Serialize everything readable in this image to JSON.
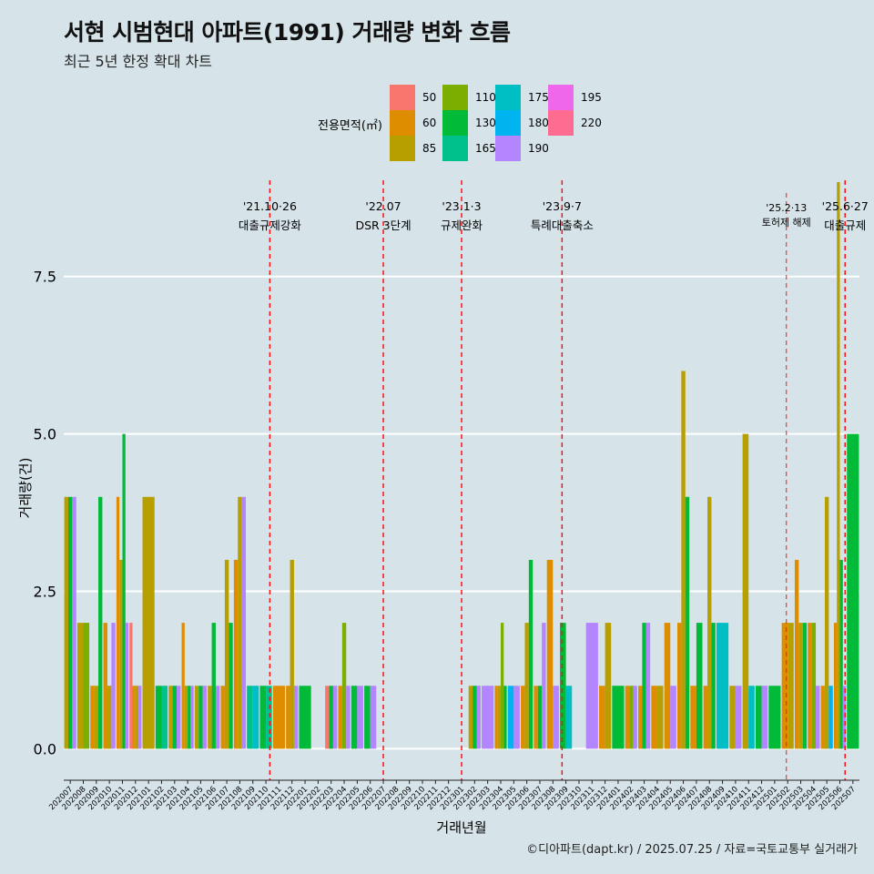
{
  "chart_data": {
    "type": "bar",
    "title": "서현 시범현대 아파트(1991) 거래량 변화 흐름",
    "subtitle": "최근 5년 한정 확대 차트",
    "xlabel": "거래년월",
    "ylabel": "거래량(건)",
    "ylim": [
      -0.5,
      9.0
    ],
    "yticks": [
      "0.0",
      "2.5",
      "5.0",
      "7.5"
    ],
    "ytick_values": [
      0,
      2.5,
      5.0,
      7.5
    ],
    "legend_title": "전용면적(㎡)",
    "legend": [
      {
        "name": "50",
        "color": "#F8766D"
      },
      {
        "name": "60",
        "color": "#DE8C00"
      },
      {
        "name": "85",
        "color": "#B79F00"
      },
      {
        "name": "110",
        "color": "#7CAE00"
      },
      {
        "name": "130",
        "color": "#00BA38"
      },
      {
        "name": "165",
        "color": "#00C08B"
      },
      {
        "name": "175",
        "color": "#00BFC4"
      },
      {
        "name": "180",
        "color": "#00B4F0"
      },
      {
        "name": "190",
        "color": "#B385FF"
      },
      {
        "name": "195",
        "color": "#EF67EB"
      },
      {
        "name": "220",
        "color": "#FF6C91"
      }
    ],
    "categories": [
      "202007",
      "202008",
      "202009",
      "202010",
      "202011",
      "202012",
      "202101",
      "202102",
      "202103",
      "202104",
      "202105",
      "202106",
      "202107",
      "202108",
      "202109",
      "202110",
      "202111",
      "202112",
      "202201",
      "202202",
      "202203",
      "202204",
      "202205",
      "202206",
      "202207",
      "202208",
      "202209",
      "202210",
      "202211",
      "202212",
      "202301",
      "202302",
      "202303",
      "202304",
      "202305",
      "202306",
      "202307",
      "202308",
      "202309",
      "202310",
      "202311",
      "202312",
      "202401",
      "202402",
      "202403",
      "202404",
      "202405",
      "202406",
      "202407",
      "202408",
      "202409",
      "202410",
      "202411",
      "202412",
      "202501",
      "202502",
      "202503",
      "202504",
      "202505",
      "202506",
      "202507"
    ],
    "series": [
      {
        "name": "50",
        "values": [
          0,
          0,
          0,
          0,
          0,
          2,
          0,
          0,
          0,
          0,
          0,
          0,
          0,
          0,
          0,
          0,
          0,
          0,
          0,
          0,
          1,
          0,
          0,
          0,
          0,
          0,
          0,
          0,
          0,
          0,
          0,
          0,
          0,
          0,
          0,
          0,
          0,
          0,
          0,
          0,
          0,
          0,
          0,
          0,
          0,
          0,
          0,
          0,
          0,
          0,
          0,
          0,
          0,
          0,
          0,
          0,
          0,
          0,
          0,
          0,
          0
        ]
      },
      {
        "name": "60",
        "values": [
          0,
          0,
          1,
          2,
          4,
          1,
          0,
          0,
          0,
          2,
          0,
          0,
          1,
          3,
          0,
          0,
          1,
          1,
          0,
          0,
          0,
          1,
          0,
          0,
          0,
          0,
          0,
          0,
          0,
          0,
          0,
          0,
          0,
          1,
          0,
          1,
          1,
          3,
          0,
          0,
          0,
          1,
          0,
          1,
          1,
          1,
          2,
          2,
          1,
          1,
          0,
          0,
          0,
          0,
          0,
          2,
          3,
          2,
          1,
          2,
          0
        ]
      },
      {
        "name": "85",
        "values": [
          4,
          2,
          1,
          1,
          3,
          1,
          4,
          0,
          1,
          1,
          1,
          1,
          3,
          4,
          0,
          0,
          0,
          3,
          0,
          0,
          0,
          0,
          0,
          0,
          0,
          0,
          0,
          0,
          0,
          0,
          0,
          1,
          0,
          1,
          0,
          2,
          0,
          0,
          0,
          0,
          0,
          2,
          0,
          0,
          0,
          1,
          0,
          6,
          0,
          4,
          0,
          1,
          5,
          0,
          0,
          2,
          2,
          0,
          4,
          9,
          0
        ]
      },
      {
        "name": "110",
        "values": [
          0,
          2,
          0,
          0,
          0,
          0,
          0,
          0,
          0,
          0,
          0,
          0,
          0,
          0,
          0,
          0,
          0,
          0,
          0,
          0,
          0,
          2,
          0,
          0,
          0,
          0,
          0,
          0,
          0,
          0,
          0,
          0,
          0,
          2,
          0,
          0,
          0,
          0,
          0,
          0,
          0,
          0,
          0,
          1,
          0,
          0,
          0,
          0,
          0,
          0,
          0,
          0,
          0,
          0,
          0,
          0,
          0,
          2,
          0,
          0,
          0
        ]
      },
      {
        "name": "130",
        "values": [
          4,
          0,
          4,
          0,
          5,
          0,
          0,
          1,
          1,
          1,
          1,
          2,
          2,
          0,
          0,
          1,
          0,
          0,
          1,
          0,
          1,
          0,
          1,
          1,
          0,
          0,
          0,
          0,
          0,
          0,
          0,
          1,
          0,
          1,
          0,
          3,
          1,
          0,
          2,
          0,
          0,
          0,
          1,
          0,
          2,
          0,
          0,
          4,
          2,
          2,
          0,
          0,
          0,
          1,
          1,
          0,
          2,
          0,
          0,
          3,
          5
        ]
      },
      {
        "name": "165",
        "values": [
          0,
          0,
          0,
          0,
          0,
          0,
          0,
          1,
          0,
          0,
          0,
          0,
          0,
          0,
          1,
          1,
          0,
          0,
          0,
          0,
          0,
          0,
          0,
          0,
          0,
          0,
          0,
          0,
          0,
          0,
          0,
          0,
          0,
          0,
          0,
          0,
          0,
          0,
          0,
          0,
          0,
          0,
          0,
          0,
          0,
          0,
          0,
          0,
          0,
          0,
          0,
          0,
          0,
          0,
          0,
          0,
          0,
          0,
          0,
          0,
          0
        ]
      },
      {
        "name": "175",
        "values": [
          0,
          0,
          0,
          0,
          0,
          0,
          0,
          0,
          0,
          0,
          0,
          0,
          0,
          0,
          1,
          0,
          0,
          0,
          0,
          0,
          0,
          0,
          0,
          0,
          0,
          0,
          0,
          0,
          0,
          0,
          0,
          0,
          0,
          0,
          0,
          0,
          0,
          0,
          1,
          0,
          0,
          0,
          0,
          0,
          0,
          0,
          0,
          0,
          0,
          0,
          2,
          0,
          1,
          0,
          0,
          0,
          0,
          0,
          0,
          0,
          0
        ]
      },
      {
        "name": "180",
        "values": [
          0,
          0,
          0,
          0,
          0,
          0,
          0,
          0,
          0,
          0,
          0,
          0,
          0,
          0,
          0,
          0,
          0,
          0,
          0,
          0,
          0,
          0,
          0,
          0,
          0,
          0,
          0,
          0,
          0,
          0,
          0,
          0,
          0,
          0,
          1,
          0,
          0,
          0,
          0,
          0,
          0,
          0,
          0,
          0,
          0,
          0,
          0,
          0,
          0,
          0,
          0,
          0,
          0,
          0,
          0,
          0,
          0,
          0,
          1,
          0,
          0
        ]
      },
      {
        "name": "190",
        "values": [
          4,
          0,
          0,
          2,
          2,
          1,
          0,
          0,
          1,
          1,
          1,
          1,
          0,
          4,
          0,
          0,
          0,
          1,
          0,
          0,
          1,
          1,
          1,
          1,
          0,
          0,
          0,
          0,
          0,
          0,
          0,
          1,
          1,
          0,
          1,
          0,
          2,
          1,
          0,
          0,
          2,
          0,
          0,
          1,
          2,
          0,
          1,
          0,
          0,
          0,
          0,
          1,
          0,
          1,
          0,
          0,
          0,
          1,
          0,
          1,
          0
        ]
      },
      {
        "name": "195",
        "values": [
          0,
          0,
          0,
          0,
          0,
          0,
          0,
          0,
          0,
          0,
          0,
          0,
          0,
          0,
          0,
          0,
          0,
          0,
          0,
          0,
          0,
          0,
          0,
          0,
          0,
          0,
          0,
          0,
          0,
          0,
          0,
          0,
          0,
          0,
          0,
          0,
          0,
          0,
          0,
          0,
          0,
          0,
          0,
          0,
          0,
          0,
          0,
          0,
          0,
          0,
          0,
          0,
          0,
          0,
          0,
          0,
          0,
          0,
          0,
          0,
          0
        ]
      },
      {
        "name": "220",
        "values": [
          0,
          0,
          0,
          0,
          0,
          0,
          0,
          0,
          0,
          0,
          0,
          0,
          0,
          0,
          0,
          0,
          0,
          0,
          0,
          0,
          0,
          0,
          0,
          0,
          0,
          0,
          0,
          0,
          0,
          0,
          0,
          0,
          0,
          0,
          0,
          0,
          0,
          0,
          0,
          0,
          0,
          0,
          0,
          0,
          0,
          0,
          0,
          0,
          0,
          0,
          0,
          0,
          0,
          0,
          0,
          0,
          0,
          0,
          0,
          0,
          0
        ]
      }
    ],
    "events": [
      {
        "at": "202110.8",
        "date": "'21.10·26",
        "label": "대출규제강화"
      },
      {
        "at": "202207",
        "date": "'22.07",
        "label": "DSR 3단계"
      },
      {
        "at": "202301",
        "date": "'23.1·3",
        "label": "규제완화"
      },
      {
        "at": "202309.2",
        "date": "'23.9·7",
        "label": "특례대출축소"
      },
      {
        "at": "202502.4",
        "date": "'25.2·13",
        "label": "토허제 해제"
      },
      {
        "at": "202506.9",
        "date": "'25.6·27",
        "label": "대출규제"
      }
    ]
  },
  "caption": "©디아파트(dapt.kr) / 2025.07.25 / 자료=국토교통부 실거래가"
}
